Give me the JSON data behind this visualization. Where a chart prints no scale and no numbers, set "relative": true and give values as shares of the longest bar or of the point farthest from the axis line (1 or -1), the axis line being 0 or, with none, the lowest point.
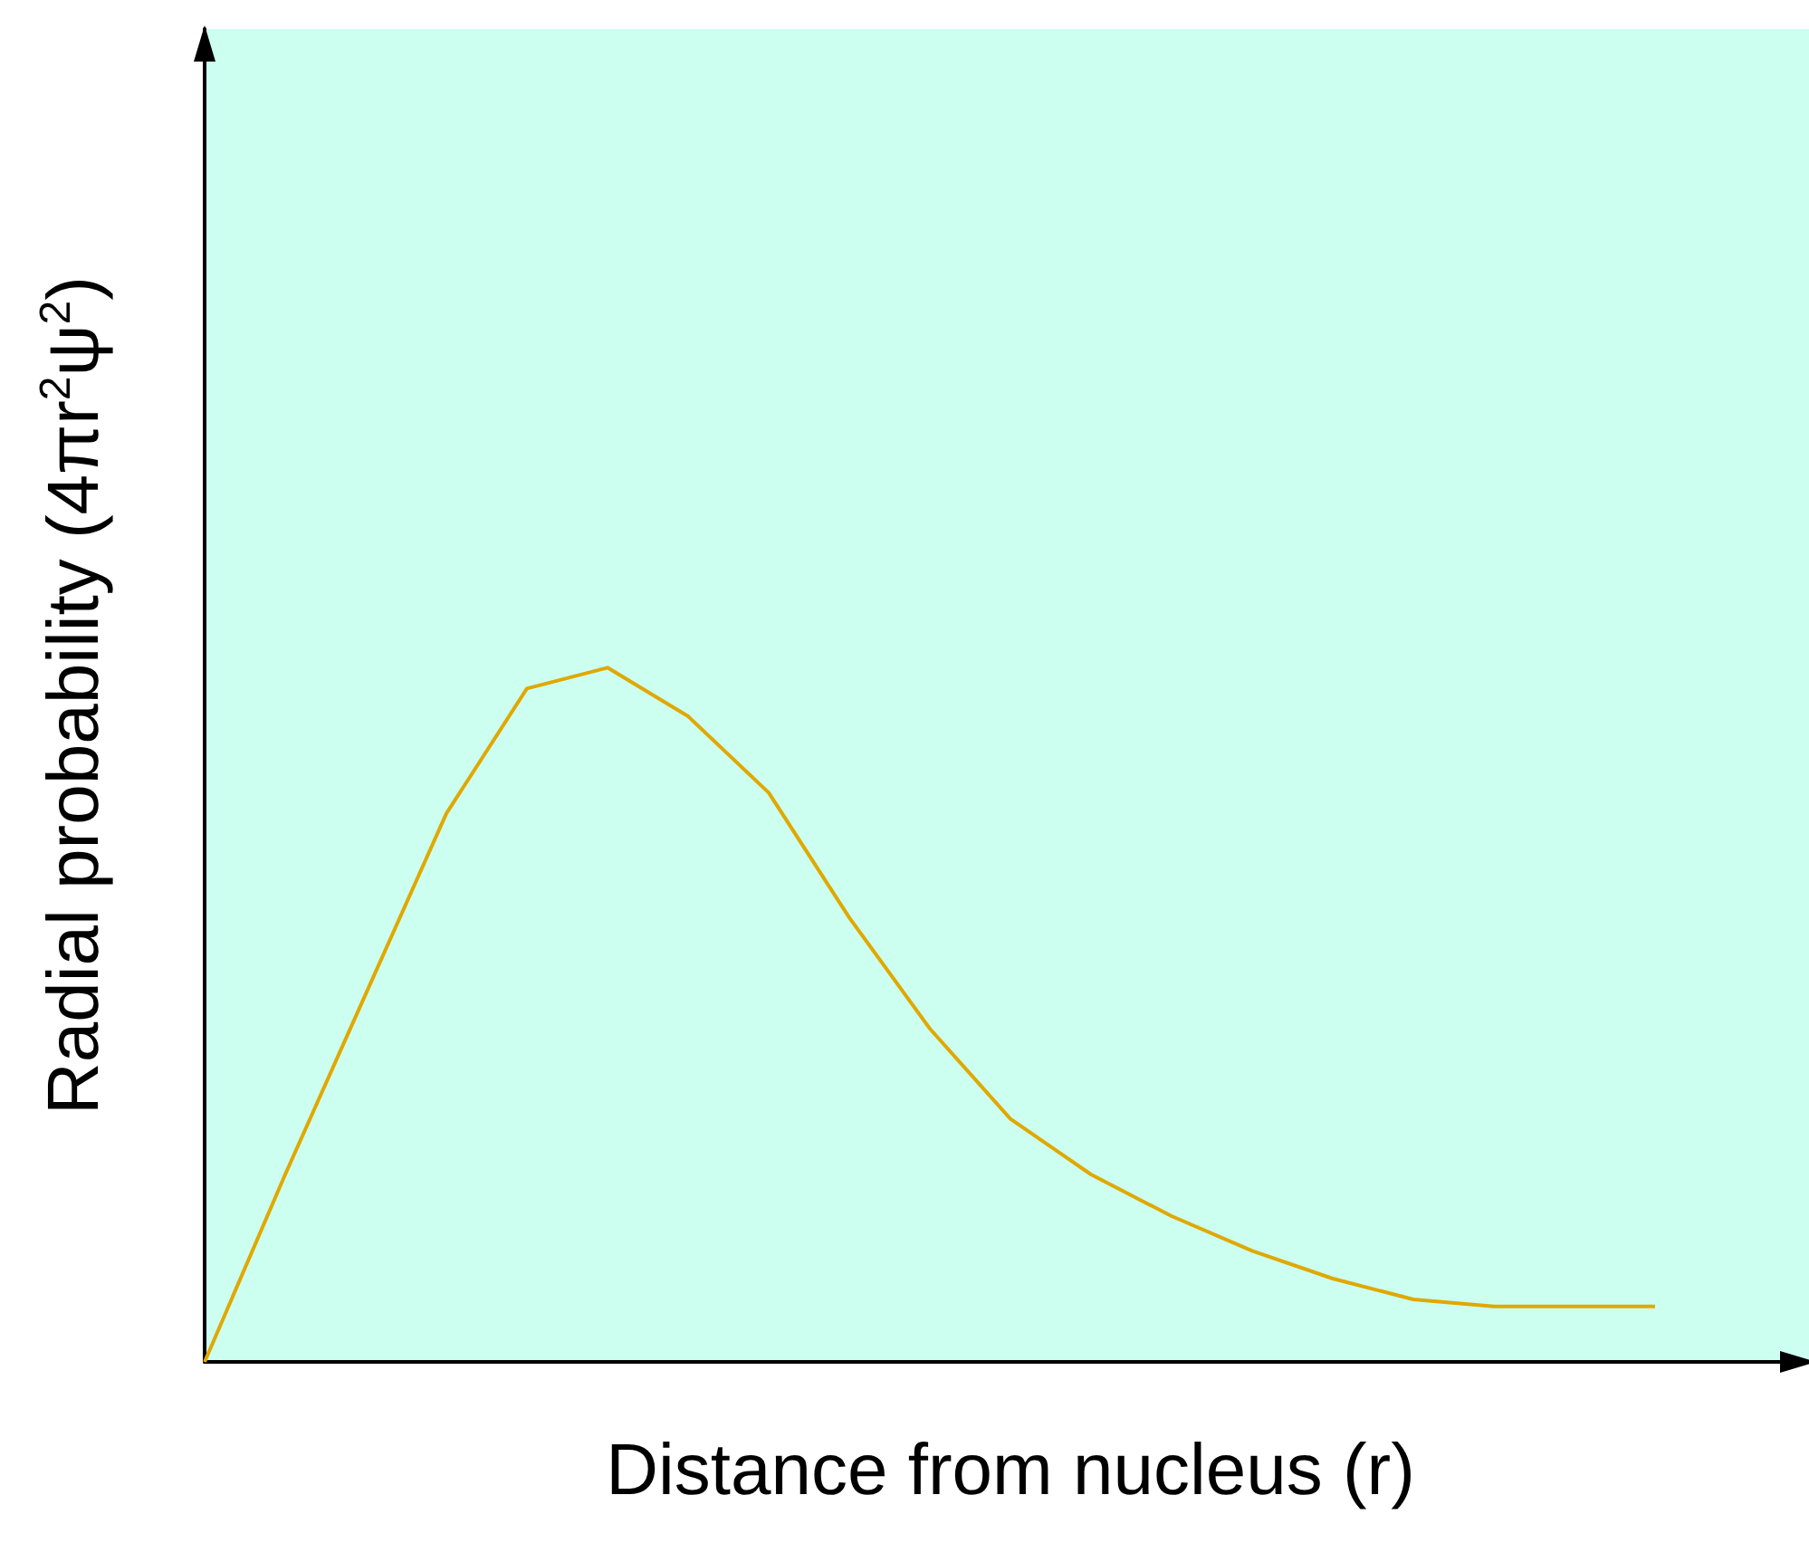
{
  "chart_data": {
    "type": "line",
    "relative": true,
    "xlabel": "Distance from nucleus (r)",
    "ylabel": "Radial probability (4πr$^{2}$ψ$^{2}$)",
    "categories": [
      null,
      null,
      null,
      null,
      null,
      null,
      null,
      null,
      null,
      null,
      null,
      null,
      null,
      null,
      null,
      null,
      null,
      null,
      null,
      null,
      null
    ],
    "series": [
      {
        "color": "#e0a800",
        "values": [
          0,
          0.27,
          0.53,
          0.79,
          0.97,
          1,
          0.93,
          0.82,
          0.64,
          0.48,
          0.35,
          0.27,
          0.21,
          0.16,
          0.12,
          0.09,
          0.08,
          0.08,
          0.08,
          null,
          null
        ]
      }
    ],
    "marker": "none",
    "grid": false
  }
}
